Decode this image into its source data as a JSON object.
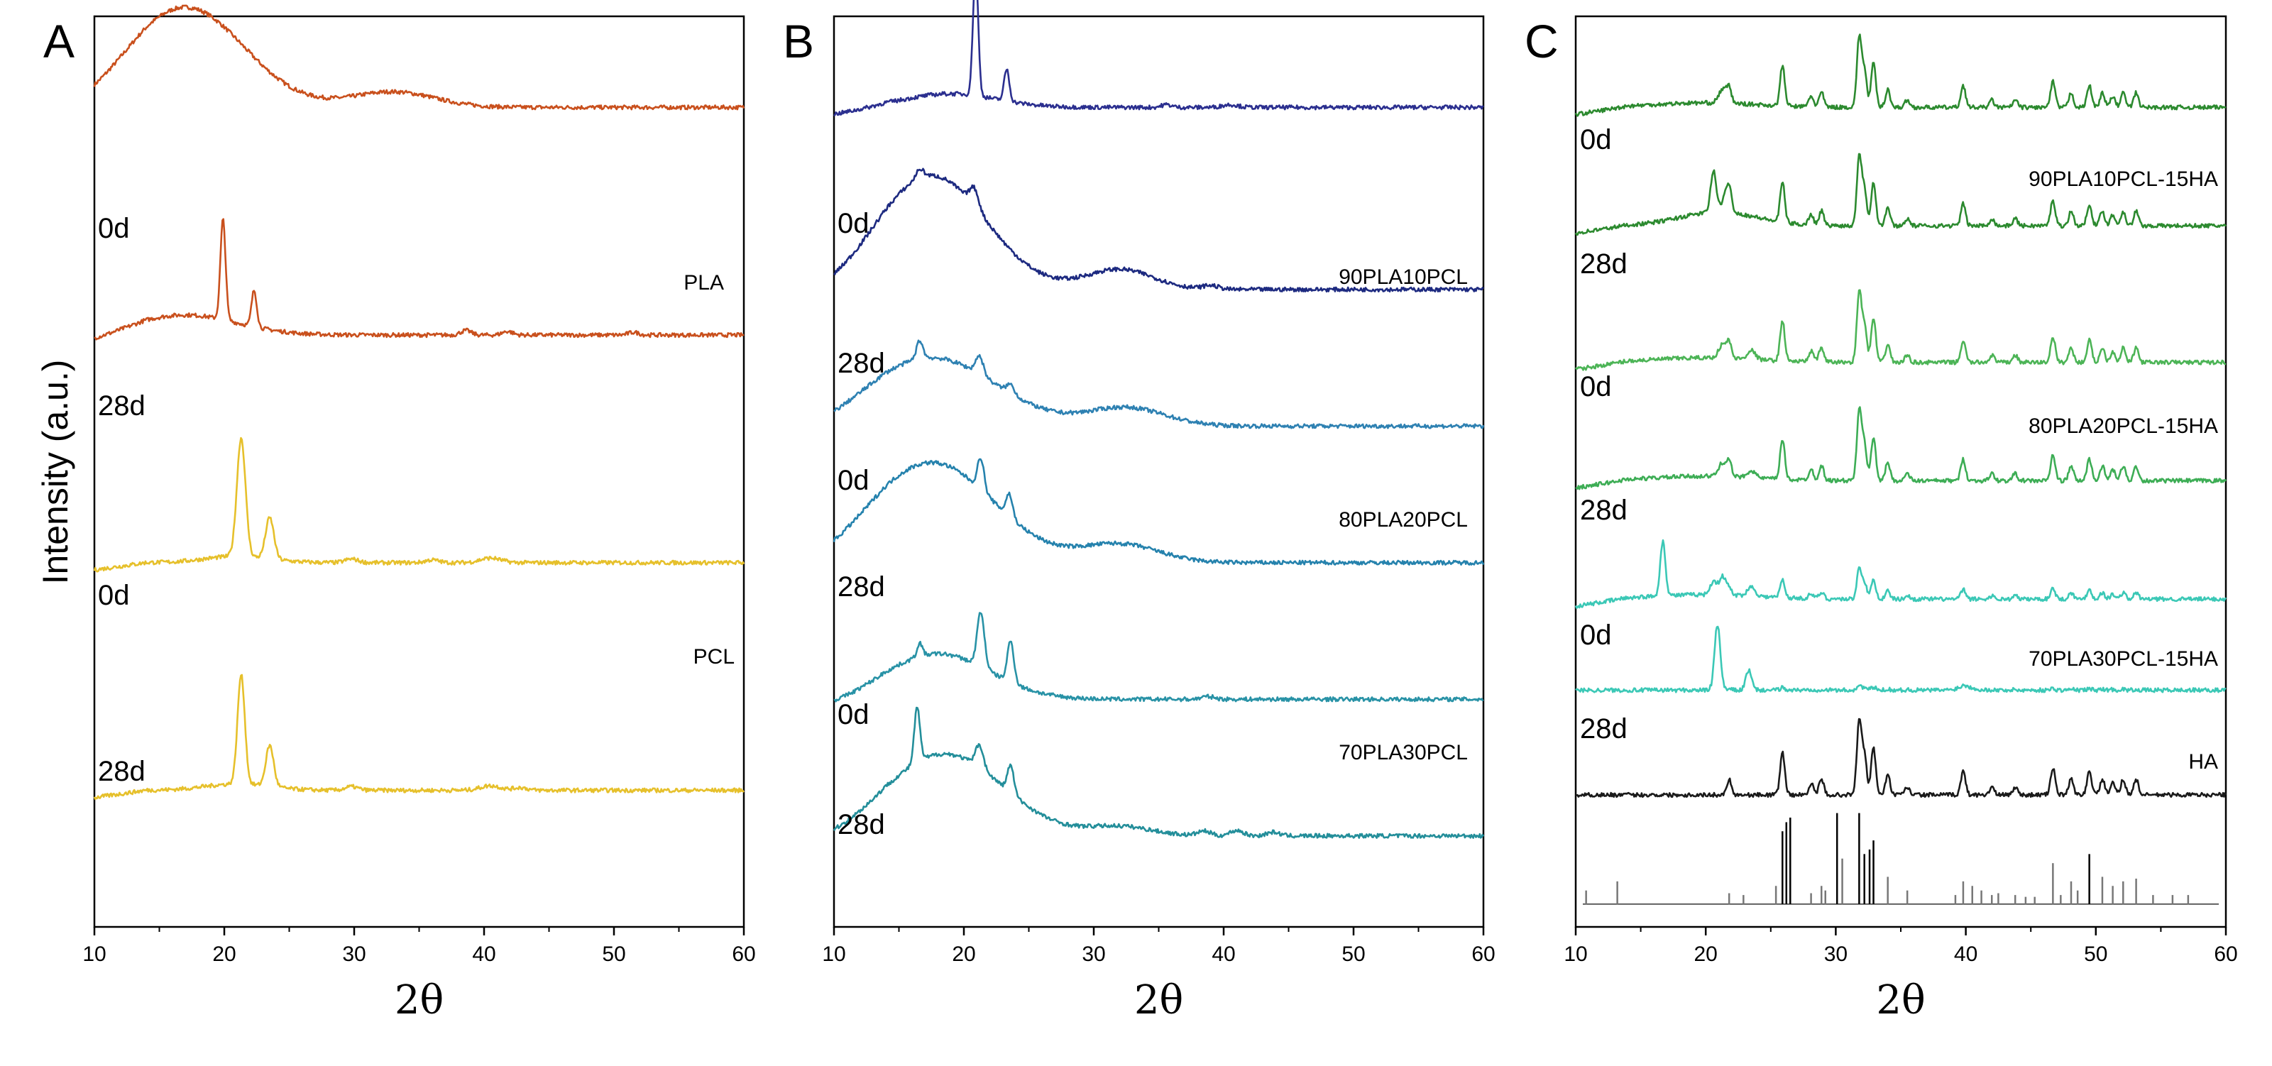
{
  "figure": {
    "ylabel": "Intensity (a.u.)"
  },
  "chart_data": [
    {
      "panel": "A",
      "type": "line",
      "xlabel": "2θ",
      "ylabel": "Intensity (a.u.)",
      "xlim": [
        10,
        60
      ],
      "xticks": [
        10,
        20,
        30,
        40,
        50,
        60
      ],
      "xtick_labels": [
        "10",
        "20",
        "30",
        "40",
        "50",
        "60"
      ],
      "ylim": [
        0,
        10
      ],
      "grid": false,
      "groups": [
        "PLA",
        "PCL"
      ],
      "series": [
        {
          "name": "PLA 0d",
          "group": "PLA",
          "day_label": "0d",
          "color": "#c9501d",
          "baseline": 9.0,
          "broad": [
            [
              17,
              1.1,
              4.5
            ],
            [
              33,
              0.17,
              3.2
            ]
          ],
          "peaks": []
        },
        {
          "name": "PLA 28d",
          "group": "PLA",
          "day_label": "28d",
          "color": "#c9501d",
          "baseline": 6.5,
          "broad": [
            [
              17,
              0.22,
              4.0
            ]
          ],
          "peaks": [
            [
              19.9,
              1.1,
              0.2
            ],
            [
              22.3,
              0.4,
              0.2
            ],
            [
              38.6,
              0.05,
              0.4
            ],
            [
              41.8,
              0.04,
              0.4
            ],
            [
              51.5,
              0.03,
              0.4
            ]
          ]
        },
        {
          "name": "PCL 0d",
          "group": "PCL",
          "day_label": "0d",
          "color": "#e6c02b",
          "baseline": 4.0,
          "broad": [
            [
              21,
              0.07,
              2.5
            ]
          ],
          "peaks": [
            [
              21.3,
              1.3,
              0.33
            ],
            [
              23.5,
              0.45,
              0.32
            ],
            [
              29.8,
              0.04,
              0.5
            ],
            [
              36,
              0.03,
              0.5
            ],
            [
              40.5,
              0.05,
              0.8
            ]
          ]
        },
        {
          "name": "PCL 28d",
          "group": "PCL",
          "day_label": "28d",
          "color": "#e6c02b",
          "baseline": 1.5,
          "broad": [
            [
              21,
              0.07,
              2.5
            ]
          ],
          "peaks": [
            [
              21.3,
              1.2,
              0.28
            ],
            [
              23.5,
              0.45,
              0.3
            ],
            [
              29.8,
              0.04,
              0.5
            ],
            [
              40.5,
              0.05,
              0.8
            ],
            [
              42.8,
              0.03,
              0.5
            ]
          ]
        }
      ]
    },
    {
      "panel": "B",
      "type": "line",
      "xlabel": "2θ",
      "xlim": [
        10,
        60
      ],
      "xticks": [
        10,
        20,
        30,
        40,
        50,
        60
      ],
      "xtick_labels": [
        "10",
        "20",
        "30",
        "40",
        "50",
        "60"
      ],
      "ylim": [
        0,
        10
      ],
      "grid": false,
      "groups": [
        "90PLA10PCL",
        "80PLA20PCL",
        "70PLA30PCL"
      ],
      "series": [
        {
          "name": "90PLA10PCL 0d",
          "group": "90PLA10PCL",
          "day_label": "0d",
          "color": "#2b2f8f",
          "baseline": 9.0,
          "broad": [
            [
              19,
              0.15,
              3.5
            ]
          ],
          "peaks": [
            [
              20.9,
              1.4,
              0.2
            ],
            [
              23.3,
              0.35,
              0.2
            ],
            [
              35.6,
              0.03,
              0.4
            ],
            [
              40.5,
              0.03,
              0.6
            ]
          ]
        },
        {
          "name": "90PLA10PCL 28d",
          "group": "90PLA10PCL",
          "day_label": "28d",
          "color": "#1d2a80",
          "baseline": 7.0,
          "broad": [
            [
              17.5,
              1.25,
              4.2
            ],
            [
              32,
              0.22,
              2.6
            ]
          ],
          "peaks": [
            [
              16.6,
              0.1,
              0.3
            ],
            [
              20.8,
              0.2,
              0.35
            ],
            [
              39,
              0.04,
              0.6
            ]
          ]
        },
        {
          "name": "80PLA20PCL 0d",
          "group": "80PLA20PCL",
          "day_label": "0d",
          "color": "#2e81b2",
          "baseline": 5.5,
          "broad": [
            [
              17.5,
              0.75,
              5.0
            ],
            [
              32.5,
              0.2,
              3.0
            ]
          ],
          "peaks": [
            [
              16.6,
              0.2,
              0.25
            ],
            [
              21.2,
              0.2,
              0.3
            ],
            [
              23.6,
              0.1,
              0.3
            ]
          ]
        },
        {
          "name": "80PLA20PCL 28d",
          "group": "80PLA20PCL",
          "day_label": "28d",
          "color": "#2582ad",
          "baseline": 4.0,
          "broad": [
            [
              17.5,
              1.1,
              4.8
            ],
            [
              32,
              0.2,
              3.0
            ]
          ],
          "peaks": [
            [
              21.3,
              0.35,
              0.25
            ],
            [
              23.5,
              0.25,
              0.25
            ]
          ]
        },
        {
          "name": "70PLA30PCL 0d",
          "group": "70PLA30PCL",
          "day_label": "0d",
          "color": "#2892a6",
          "baseline": 2.5,
          "broad": [
            [
              18,
              0.5,
              4.0
            ]
          ],
          "peaks": [
            [
              16.6,
              0.15,
              0.2
            ],
            [
              21.3,
              0.6,
              0.28
            ],
            [
              23.6,
              0.45,
              0.25
            ],
            [
              38.8,
              0.03,
              0.5
            ]
          ]
        },
        {
          "name": "70PLA30PCL 28d",
          "group": "70PLA30PCL",
          "day_label": "28d",
          "color": "#238e9a",
          "baseline": 1.0,
          "broad": [
            [
              18.5,
              0.9,
              4.5
            ],
            [
              32,
              0.1,
              2.5
            ]
          ],
          "peaks": [
            [
              16.4,
              0.6,
              0.22
            ],
            [
              21.2,
              0.25,
              0.3
            ],
            [
              23.6,
              0.3,
              0.25
            ],
            [
              38.5,
              0.05,
              0.5
            ],
            [
              41,
              0.06,
              0.5
            ],
            [
              43.8,
              0.04,
              0.5
            ]
          ]
        }
      ]
    },
    {
      "panel": "C",
      "type": "line",
      "xlabel": "2θ",
      "xlim": [
        10,
        60
      ],
      "xticks": [
        10,
        20,
        30,
        40,
        50,
        60
      ],
      "xtick_labels": [
        "10",
        "20",
        "30",
        "40",
        "50",
        "60"
      ],
      "ylim": [
        0,
        10
      ],
      "grid": false,
      "groups": [
        "90PLA10PCL-15HA",
        "80PLA20PCL-15HA",
        "70PLA30PCL-15HA",
        "HA"
      ],
      "ha_peaks": [
        [
          21.8,
          0.2
        ],
        [
          25.9,
          0.55
        ],
        [
          28.1,
          0.15
        ],
        [
          28.9,
          0.2
        ],
        [
          31.8,
          0.95
        ],
        [
          32.2,
          0.5
        ],
        [
          32.9,
          0.6
        ],
        [
          34.0,
          0.25
        ],
        [
          35.5,
          0.1
        ],
        [
          39.8,
          0.3
        ],
        [
          42.0,
          0.1
        ],
        [
          43.8,
          0.1
        ],
        [
          46.7,
          0.35
        ],
        [
          48.1,
          0.2
        ],
        [
          49.5,
          0.3
        ],
        [
          50.5,
          0.2
        ],
        [
          51.3,
          0.15
        ],
        [
          52.1,
          0.2
        ],
        [
          53.1,
          0.2
        ]
      ],
      "series": [
        {
          "name": "90PLA10PCL-15HA 0d",
          "group": "90PLA10PCL-15HA",
          "day_label": "0d",
          "color": "#2c8a2f",
          "baseline": 9.0,
          "scale": 0.8,
          "broad": [
            [
              20,
              0.05,
              4.0
            ]
          ],
          "peaks": [
            [
              21.3,
              0.15,
              0.3
            ]
          ]
        },
        {
          "name": "90PLA10PCL-15HA 28d",
          "group": "90PLA10PCL-15HA",
          "day_label": "28d",
          "color": "#2c8a2f",
          "baseline": 7.7,
          "scale": 0.8,
          "broad": [
            [
              21,
              0.15,
              3.0
            ]
          ],
          "peaks": [
            [
              20.6,
              0.45,
              0.22
            ],
            [
              21.6,
              0.2,
              0.3
            ]
          ]
        },
        {
          "name": "80PLA20PCL-15HA 0d",
          "group": "80PLA20PCL-15HA",
          "day_label": "0d",
          "color": "#4cb456",
          "baseline": 6.2,
          "scale": 0.8,
          "broad": [
            [
              20,
              0.05,
              4.0
            ]
          ],
          "peaks": [
            [
              21.3,
              0.15,
              0.3
            ],
            [
              23.5,
              0.1,
              0.3
            ]
          ]
        },
        {
          "name": "80PLA20PCL-15HA 28d",
          "group": "80PLA20PCL-15HA",
          "day_label": "28d",
          "color": "#3dad55",
          "baseline": 4.9,
          "scale": 0.8,
          "broad": [
            [
              20,
              0.05,
              4.0
            ]
          ],
          "peaks": [
            [
              21.3,
              0.15,
              0.3
            ],
            [
              23.5,
              0.08,
              0.3
            ]
          ]
        },
        {
          "name": "70PLA30PCL-15HA 0d",
          "group": "70PLA30PCL-15HA",
          "day_label": "0d",
          "color": "#3bc8b6",
          "baseline": 3.6,
          "scale": 0.35,
          "broad": [
            [
              20,
              0.05,
              4.0
            ]
          ],
          "peaks": [
            [
              16.7,
              0.6,
              0.2
            ],
            [
              20.6,
              0.15,
              0.25
            ],
            [
              21.3,
              0.2,
              0.25
            ],
            [
              23.5,
              0.1,
              0.3
            ]
          ]
        },
        {
          "name": "70PLA30PCL-15HA 28d",
          "group": "70PLA30PCL-15HA",
          "day_label": "28d",
          "color": "#3bc8b6",
          "baseline": 2.6,
          "scale": 0.05,
          "broad": [],
          "peaks": [
            [
              20.9,
              0.72,
              0.22
            ],
            [
              23.3,
              0.22,
              0.22
            ],
            [
              40,
              0.04,
              0.6
            ]
          ]
        },
        {
          "name": "HA",
          "group": "HA",
          "day_label": "",
          "color": "#1a1a1a",
          "baseline": 1.45,
          "scale": 0.85,
          "broad": [],
          "peaks": []
        }
      ],
      "reference_sticks": [
        [
          10.8,
          0.15
        ],
        [
          13.2,
          0.25
        ],
        [
          21.8,
          0.12
        ],
        [
          22.9,
          0.1
        ],
        [
          25.4,
          0.2
        ],
        [
          25.9,
          0.8
        ],
        [
          26.2,
          0.9
        ],
        [
          26.5,
          0.95
        ],
        [
          28.1,
          0.12
        ],
        [
          28.9,
          0.2
        ],
        [
          29.2,
          0.15
        ],
        [
          30.1,
          1.0
        ],
        [
          30.5,
          0.5
        ],
        [
          31.8,
          1.0
        ],
        [
          32.2,
          0.55
        ],
        [
          32.6,
          0.6
        ],
        [
          32.9,
          0.7
        ],
        [
          34.0,
          0.3
        ],
        [
          35.5,
          0.15
        ],
        [
          39.2,
          0.1
        ],
        [
          39.8,
          0.25
        ],
        [
          40.5,
          0.2
        ],
        [
          41.2,
          0.15
        ],
        [
          42.0,
          0.1
        ],
        [
          42.5,
          0.12
        ],
        [
          43.8,
          0.1
        ],
        [
          44.6,
          0.08
        ],
        [
          45.3,
          0.08
        ],
        [
          46.7,
          0.45
        ],
        [
          47.3,
          0.1
        ],
        [
          48.1,
          0.25
        ],
        [
          48.6,
          0.15
        ],
        [
          49.5,
          0.55
        ],
        [
          50.5,
          0.3
        ],
        [
          51.3,
          0.2
        ],
        [
          52.1,
          0.25
        ],
        [
          53.1,
          0.28
        ],
        [
          54.4,
          0.1
        ],
        [
          55.9,
          0.1
        ],
        [
          57.1,
          0.1
        ]
      ]
    }
  ]
}
